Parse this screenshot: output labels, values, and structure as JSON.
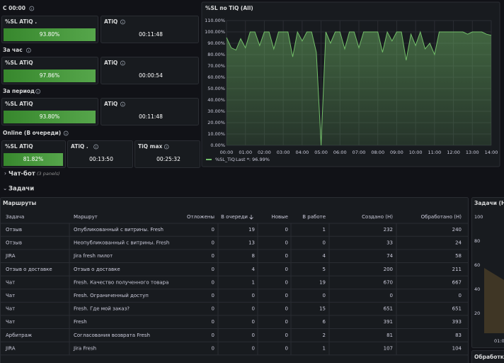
{
  "sections": [
    {
      "title": "С 00:00",
      "stats": [
        {
          "label": "%SL ATiQ .",
          "value": "93.80%"
        },
        {
          "label": "ATiQ",
          "value": "00:11:48"
        }
      ]
    },
    {
      "title": "За час",
      "stats": [
        {
          "label": "%SL ATiQ",
          "value": "97.86%"
        },
        {
          "label": "ATiQ",
          "value": "00:00:54"
        }
      ]
    },
    {
      "title": "За период",
      "stats": [
        {
          "label": "%SL ATiQ",
          "value": "93.80%"
        },
        {
          "label": "ATiQ",
          "value": "00:11:48"
        }
      ]
    },
    {
      "title": "Online (В очереди)",
      "stats": [
        {
          "label": "%SL ATiQ",
          "value": "81.82%"
        },
        {
          "label": "ATiQ .",
          "value": "00:13:50"
        },
        {
          "label": "TiQ max",
          "value": "00:25:32"
        }
      ]
    }
  ],
  "chart_data": {
    "type": "line",
    "title": "%SL по TiQ (All)",
    "x": [
      0,
      0.25,
      0.5,
      0.75,
      1,
      1.25,
      1.5,
      1.75,
      2,
      2.25,
      2.5,
      2.75,
      3,
      3.25,
      3.5,
      3.75,
      4,
      4.25,
      4.5,
      4.75,
      5,
      5.25,
      5.5,
      5.75,
      6,
      6.25,
      6.5,
      6.75,
      7,
      7.25,
      7.5,
      7.75,
      8,
      8.25,
      8.5,
      8.75,
      9,
      9.25,
      9.5,
      9.75,
      10,
      10.25,
      10.5,
      10.75,
      11,
      11.25,
      11.5,
      11.75,
      12,
      12.25,
      12.5,
      12.75,
      13,
      13.25,
      13.5,
      13.75,
      14
    ],
    "series": [
      {
        "name": "%SL_TiQ",
        "color": "#73bf69",
        "values": [
          95,
          86,
          84,
          94,
          86,
          100,
          100,
          88,
          100,
          100,
          85,
          100,
          100,
          100,
          78,
          100,
          92,
          100,
          100,
          82,
          0,
          100,
          90,
          100,
          100,
          85,
          100,
          100,
          86,
          100,
          100,
          100,
          100,
          82,
          100,
          92,
          100,
          100,
          75,
          98,
          88,
          100,
          85,
          90,
          80,
          100,
          100,
          100,
          100,
          100,
          100,
          98,
          100,
          100,
          100,
          98,
          97
        ]
      }
    ],
    "legend_last": "Last *: 96.99%",
    "xlim": [
      0,
      14
    ],
    "xticks": [
      {
        "value": 0,
        "label": "00:00"
      },
      {
        "value": 1,
        "label": "01:00"
      },
      {
        "value": 2,
        "label": "02:00"
      },
      {
        "value": 3,
        "label": "03:00"
      },
      {
        "value": 4,
        "label": "04:00"
      },
      {
        "value": 5,
        "label": "05:00"
      },
      {
        "value": 6,
        "label": "06:00"
      },
      {
        "value": 7,
        "label": "07:00"
      },
      {
        "value": 8,
        "label": "08:00"
      },
      {
        "value": 9,
        "label": "09:00"
      },
      {
        "value": 10,
        "label": "10:00"
      },
      {
        "value": 11,
        "label": "11:00"
      },
      {
        "value": 12,
        "label": "12:00"
      },
      {
        "value": 13,
        "label": "13:00"
      },
      {
        "value": 14,
        "label": "14:00"
      }
    ],
    "ylim": [
      0,
      110
    ],
    "yticks": [
      {
        "value": 0,
        "label": "0.00%"
      },
      {
        "value": 10,
        "label": "10.00%"
      },
      {
        "value": 20,
        "label": "20.00%"
      },
      {
        "value": 30,
        "label": "30.00%"
      },
      {
        "value": 40,
        "label": "40.00%"
      },
      {
        "value": 50,
        "label": "50.00%"
      },
      {
        "value": 60,
        "label": "60.00%"
      },
      {
        "value": 70,
        "label": "70.00%"
      },
      {
        "value": 80,
        "label": "80.00%"
      },
      {
        "value": 90,
        "label": "90.00%"
      },
      {
        "value": 100,
        "label": "100.00%"
      },
      {
        "value": 110,
        "label": "110.00%"
      }
    ],
    "grid": true
  },
  "rows": [
    {
      "title": "Чат-бот",
      "note": "(3 panels)"
    },
    {
      "title": "Задачи"
    }
  ],
  "table": {
    "title": "Маршруты",
    "columns": [
      "Задача",
      "Маршрут",
      "Отложены",
      "В очереди",
      "Новые",
      "В работе",
      "Создано (Н)",
      "Обработано (Н)"
    ],
    "rows": [
      [
        "Отзыв",
        "Опубликованный с витрины. Fresh",
        0,
        19,
        0,
        1,
        232,
        240
      ],
      [
        "Отзыв",
        "Неопубликованный с витрины. Fresh",
        0,
        13,
        0,
        0,
        33,
        24
      ],
      [
        "JIRA",
        "Jira fresh пилот",
        0,
        8,
        0,
        4,
        74,
        58
      ],
      [
        "Отзыв о доставке",
        "Отзыв о доставке",
        0,
        4,
        0,
        5,
        200,
        211
      ],
      [
        "Чат",
        "Fresh. Качество полученного товара",
        0,
        1,
        0,
        19,
        670,
        667
      ],
      [
        "Чат",
        "Fresh. Ограниченный доступ",
        0,
        0,
        0,
        0,
        0,
        0
      ],
      [
        "Чат",
        "Fresh. Где мой заказ?",
        0,
        0,
        0,
        15,
        651,
        651
      ],
      [
        "Чат",
        "Fresh",
        0,
        0,
        0,
        6,
        391,
        393
      ],
      [
        "Арбитраж",
        "Согласования возврата Fresh",
        0,
        0,
        0,
        2,
        81,
        83
      ],
      [
        "JIRA",
        "Jira Fresh",
        0,
        0,
        0,
        1,
        107,
        104
      ]
    ]
  },
  "side_panel": {
    "title": "Задачи (Н",
    "yticks": [
      100,
      80,
      60,
      40,
      20
    ],
    "xtick": "01:00"
  },
  "bottom_panel": {
    "title": "Обработка ("
  }
}
